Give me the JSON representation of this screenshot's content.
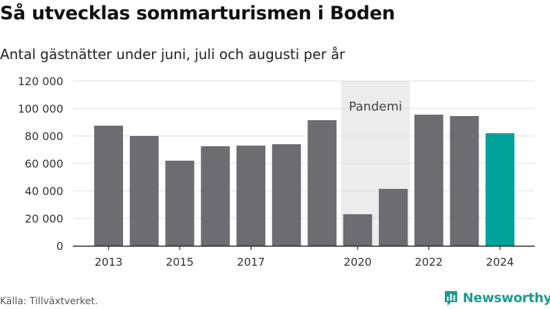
{
  "header": {
    "title": "Så utvecklas sommarturismen i Boden",
    "subtitle": "Antal gästnätter under juni, juli och augusti per år"
  },
  "footer": {
    "source": "Källa: Tillväxtverket.",
    "brand": "Newsworthy",
    "brand_icon": "newsworthy-logo-icon",
    "brand_color": "#1f9a8f"
  },
  "chart_data": {
    "type": "bar",
    "categories": [
      "2013",
      "2014",
      "2015",
      "2016",
      "2017",
      "2018",
      "2019",
      "2020",
      "2021",
      "2022",
      "2023",
      "2024"
    ],
    "values": [
      87500,
      80000,
      62000,
      72500,
      73000,
      74000,
      91500,
      23000,
      41500,
      95500,
      94500,
      82000
    ],
    "ylim": [
      0,
      120000
    ],
    "yticks": [
      0,
      20000,
      40000,
      60000,
      80000,
      100000,
      120000
    ],
    "ytick_labels": [
      "0",
      "20 000",
      "40 000",
      "60 000",
      "80 000",
      "100 000",
      "120 000"
    ],
    "xtick_labels": [
      "2013",
      "2015",
      "2017",
      "2020",
      "2022",
      "2024"
    ],
    "highlight_category": "2024",
    "shaded_region": {
      "label": "Pandemi",
      "from": "2020",
      "to": "2021"
    },
    "grid": true,
    "colors": {
      "bar": "#6d6c71",
      "highlight": "#00a39a",
      "shade": "#ececec",
      "grid": "#dcdcdc",
      "axis": "#222222"
    }
  }
}
